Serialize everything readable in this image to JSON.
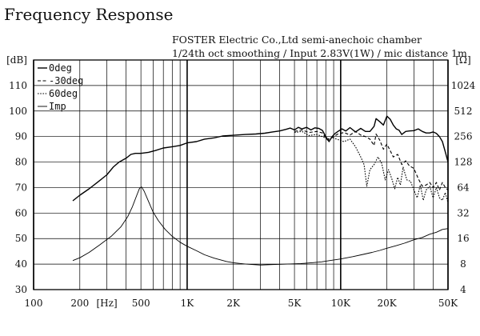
{
  "header": {
    "title": "Frequency Response",
    "subtitle_line1": "FOSTER Electric Co.,Ltd  semi-anechoic chamber",
    "subtitle_line2": "1/24th oct smoothing / Input 2.83V(1W) / mic distance 1m"
  },
  "chart_data": {
    "type": "line",
    "title": "Frequency Response",
    "xlabel": "[Hz]",
    "ylabel": "[dB]",
    "y2label": "[Ω]",
    "x_scale": "log",
    "xlim": [
      100,
      50000
    ],
    "ylim": [
      30,
      120
    ],
    "y2_scale": "log2",
    "y2lim": [
      4,
      2048
    ],
    "grid": true,
    "legend_position": "top-left",
    "x_tick_labels": [
      {
        "value": 100,
        "label": "100"
      },
      {
        "value": 200,
        "label": "200"
      },
      {
        "value": 300,
        "label": "[Hz]"
      },
      {
        "value": 500,
        "label": "500"
      },
      {
        "value": 1000,
        "label": "1K"
      },
      {
        "value": 2000,
        "label": "2K"
      },
      {
        "value": 5000,
        "label": "5K"
      },
      {
        "value": 10000,
        "label": "10K"
      },
      {
        "value": 20000,
        "label": "20K"
      },
      {
        "value": 50000,
        "label": "50K"
      }
    ],
    "y_tick_labels": [
      {
        "value": 120,
        "label": "[dB]"
      },
      {
        "value": 110,
        "label": "110"
      },
      {
        "value": 100,
        "label": "100"
      },
      {
        "value": 90,
        "label": "90"
      },
      {
        "value": 80,
        "label": "80"
      },
      {
        "value": 70,
        "label": "70"
      },
      {
        "value": 60,
        "label": "60"
      },
      {
        "value": 50,
        "label": "50"
      },
      {
        "value": 40,
        "label": "40"
      },
      {
        "value": 30,
        "label": "30"
      }
    ],
    "y2_tick_labels": [
      {
        "value": 2048,
        "label": "[Ω]"
      },
      {
        "value": 1024,
        "label": "1024"
      },
      {
        "value": 512,
        "label": "512"
      },
      {
        "value": 256,
        "label": "256"
      },
      {
        "value": 128,
        "label": "128"
      },
      {
        "value": 64,
        "label": "64"
      },
      {
        "value": 32,
        "label": "32"
      },
      {
        "value": 16,
        "label": "16"
      },
      {
        "value": 8,
        "label": "8"
      },
      {
        "value": 4,
        "label": "4"
      }
    ],
    "series": [
      {
        "name": "0deg",
        "style": "solid",
        "axis": "left",
        "points": [
          [
            180,
            64.8
          ],
          [
            200,
            67
          ],
          [
            230,
            69.5
          ],
          [
            260,
            72
          ],
          [
            300,
            75
          ],
          [
            330,
            78
          ],
          [
            360,
            80
          ],
          [
            400,
            81.5
          ],
          [
            430,
            83
          ],
          [
            460,
            83.4
          ],
          [
            500,
            83.4
          ],
          [
            560,
            83.8
          ],
          [
            620,
            84.5
          ],
          [
            700,
            85.5
          ],
          [
            800,
            86
          ],
          [
            900,
            86.5
          ],
          [
            1000,
            87.5
          ],
          [
            1150,
            88
          ],
          [
            1300,
            89
          ],
          [
            1500,
            89.5
          ],
          [
            1700,
            90.2
          ],
          [
            2000,
            90.5
          ],
          [
            2400,
            90.8
          ],
          [
            2800,
            91
          ],
          [
            3200,
            91.3
          ],
          [
            3600,
            91.8
          ],
          [
            4000,
            92.2
          ],
          [
            4400,
            92.8
          ],
          [
            4700,
            93.3
          ],
          [
            5000,
            92.6
          ],
          [
            5300,
            93.6
          ],
          [
            5600,
            93
          ],
          [
            6000,
            93.6
          ],
          [
            6400,
            92.6
          ],
          [
            6800,
            93.4
          ],
          [
            7200,
            93.2
          ],
          [
            7600,
            92.4
          ],
          [
            8000,
            90
          ],
          [
            8400,
            88
          ],
          [
            8800,
            90
          ],
          [
            9200,
            91.2
          ],
          [
            9700,
            92.2
          ],
          [
            10200,
            93
          ],
          [
            10800,
            92.2
          ],
          [
            11500,
            93.5
          ],
          [
            12500,
            91.8
          ],
          [
            13500,
            93.2
          ],
          [
            14500,
            92
          ],
          [
            15500,
            92
          ],
          [
            16500,
            94
          ],
          [
            17000,
            97
          ],
          [
            18000,
            95.8
          ],
          [
            19000,
            94.5
          ],
          [
            20000,
            98
          ],
          [
            21000,
            96.8
          ],
          [
            22000,
            94.5
          ],
          [
            23000,
            93
          ],
          [
            24000,
            92.5
          ],
          [
            25000,
            90.8
          ],
          [
            26500,
            92
          ],
          [
            28000,
            92.2
          ],
          [
            30000,
            92.3
          ],
          [
            32000,
            93
          ],
          [
            34000,
            92
          ],
          [
            36000,
            91.4
          ],
          [
            38000,
            91.4
          ],
          [
            40000,
            91.8
          ],
          [
            42000,
            91.2
          ],
          [
            44000,
            90
          ],
          [
            46000,
            88
          ],
          [
            48000,
            84
          ],
          [
            50000,
            80
          ]
        ]
      },
      {
        "name": "-30deg",
        "style": "dash",
        "axis": "left",
        "points": [
          [
            5000,
            92
          ],
          [
            5600,
            92.6
          ],
          [
            6200,
            91.6
          ],
          [
            7000,
            92
          ],
          [
            7600,
            91.4
          ],
          [
            8200,
            88.6
          ],
          [
            8800,
            89.6
          ],
          [
            9600,
            91
          ],
          [
            10500,
            91.6
          ],
          [
            11500,
            90.6
          ],
          [
            12500,
            92
          ],
          [
            13500,
            90.6
          ],
          [
            14500,
            90
          ],
          [
            15500,
            89
          ],
          [
            16500,
            86.5
          ],
          [
            17000,
            91
          ],
          [
            18000,
            88.5
          ],
          [
            19000,
            85
          ],
          [
            20000,
            87
          ],
          [
            21000,
            84.5
          ],
          [
            22000,
            82
          ],
          [
            23500,
            83
          ],
          [
            25000,
            79
          ],
          [
            26500,
            80.5
          ],
          [
            28000,
            78.5
          ],
          [
            30000,
            77.5
          ],
          [
            32000,
            73.5
          ],
          [
            34000,
            70.5
          ],
          [
            36000,
            71
          ],
          [
            38000,
            72
          ],
          [
            40000,
            70
          ],
          [
            42000,
            72
          ],
          [
            44000,
            69
          ],
          [
            46000,
            72
          ],
          [
            48000,
            70
          ],
          [
            50000,
            69
          ]
        ]
      },
      {
        "name": "60deg",
        "style": "dot",
        "axis": "left",
        "points": [
          [
            5000,
            91.6
          ],
          [
            5600,
            92
          ],
          [
            6200,
            90.4
          ],
          [
            7000,
            90.8
          ],
          [
            7600,
            90
          ],
          [
            8200,
            89
          ],
          [
            8800,
            89.6
          ],
          [
            9600,
            88.8
          ],
          [
            10500,
            88
          ],
          [
            11500,
            89
          ],
          [
            12500,
            86
          ],
          [
            13500,
            82
          ],
          [
            14200,
            79
          ],
          [
            14800,
            70.5
          ],
          [
            15500,
            77
          ],
          [
            16500,
            79
          ],
          [
            17500,
            82
          ],
          [
            18500,
            79.5
          ],
          [
            19500,
            73
          ],
          [
            20500,
            77
          ],
          [
            21500,
            73.5
          ],
          [
            22500,
            69.5
          ],
          [
            23500,
            74
          ],
          [
            24500,
            71
          ],
          [
            25500,
            78
          ],
          [
            27000,
            73
          ],
          [
            28500,
            72.5
          ],
          [
            30000,
            69
          ],
          [
            31500,
            66
          ],
          [
            33000,
            71
          ],
          [
            34500,
            65
          ],
          [
            36000,
            69
          ],
          [
            38000,
            70.5
          ],
          [
            40000,
            66
          ],
          [
            42000,
            70
          ],
          [
            44000,
            66
          ],
          [
            46000,
            65
          ],
          [
            48000,
            68
          ],
          [
            50000,
            64
          ]
        ]
      },
      {
        "name": "Imp",
        "style": "solid-thin",
        "axis": "right",
        "points": [
          [
            180,
            8.8
          ],
          [
            200,
            9.5
          ],
          [
            230,
            11
          ],
          [
            270,
            13.5
          ],
          [
            320,
            17
          ],
          [
            370,
            22
          ],
          [
            410,
            29
          ],
          [
            440,
            38
          ],
          [
            470,
            52
          ],
          [
            490,
            63
          ],
          [
            505,
            65
          ],
          [
            525,
            58
          ],
          [
            560,
            44
          ],
          [
            600,
            33
          ],
          [
            650,
            26
          ],
          [
            720,
            20.5
          ],
          [
            800,
            17
          ],
          [
            900,
            14.5
          ],
          [
            1000,
            13
          ],
          [
            1150,
            11.5
          ],
          [
            1300,
            10.3
          ],
          [
            1500,
            9.4
          ],
          [
            1800,
            8.6
          ],
          [
            2000,
            8.3
          ],
          [
            2400,
            8
          ],
          [
            3000,
            7.8
          ],
          [
            3600,
            7.9
          ],
          [
            4500,
            8
          ],
          [
            5500,
            8.1
          ],
          [
            6500,
            8.3
          ],
          [
            7500,
            8.5
          ],
          [
            8500,
            8.8
          ],
          [
            10000,
            9.2
          ],
          [
            12000,
            9.8
          ],
          [
            14000,
            10.4
          ],
          [
            16000,
            11
          ],
          [
            18000,
            11.6
          ],
          [
            20000,
            12.3
          ],
          [
            23000,
            13.2
          ],
          [
            26000,
            14.1
          ],
          [
            30000,
            15.5
          ],
          [
            34000,
            16.5
          ],
          [
            38000,
            18
          ],
          [
            42000,
            19
          ],
          [
            46000,
            20.5
          ],
          [
            50000,
            21
          ]
        ]
      }
    ]
  }
}
